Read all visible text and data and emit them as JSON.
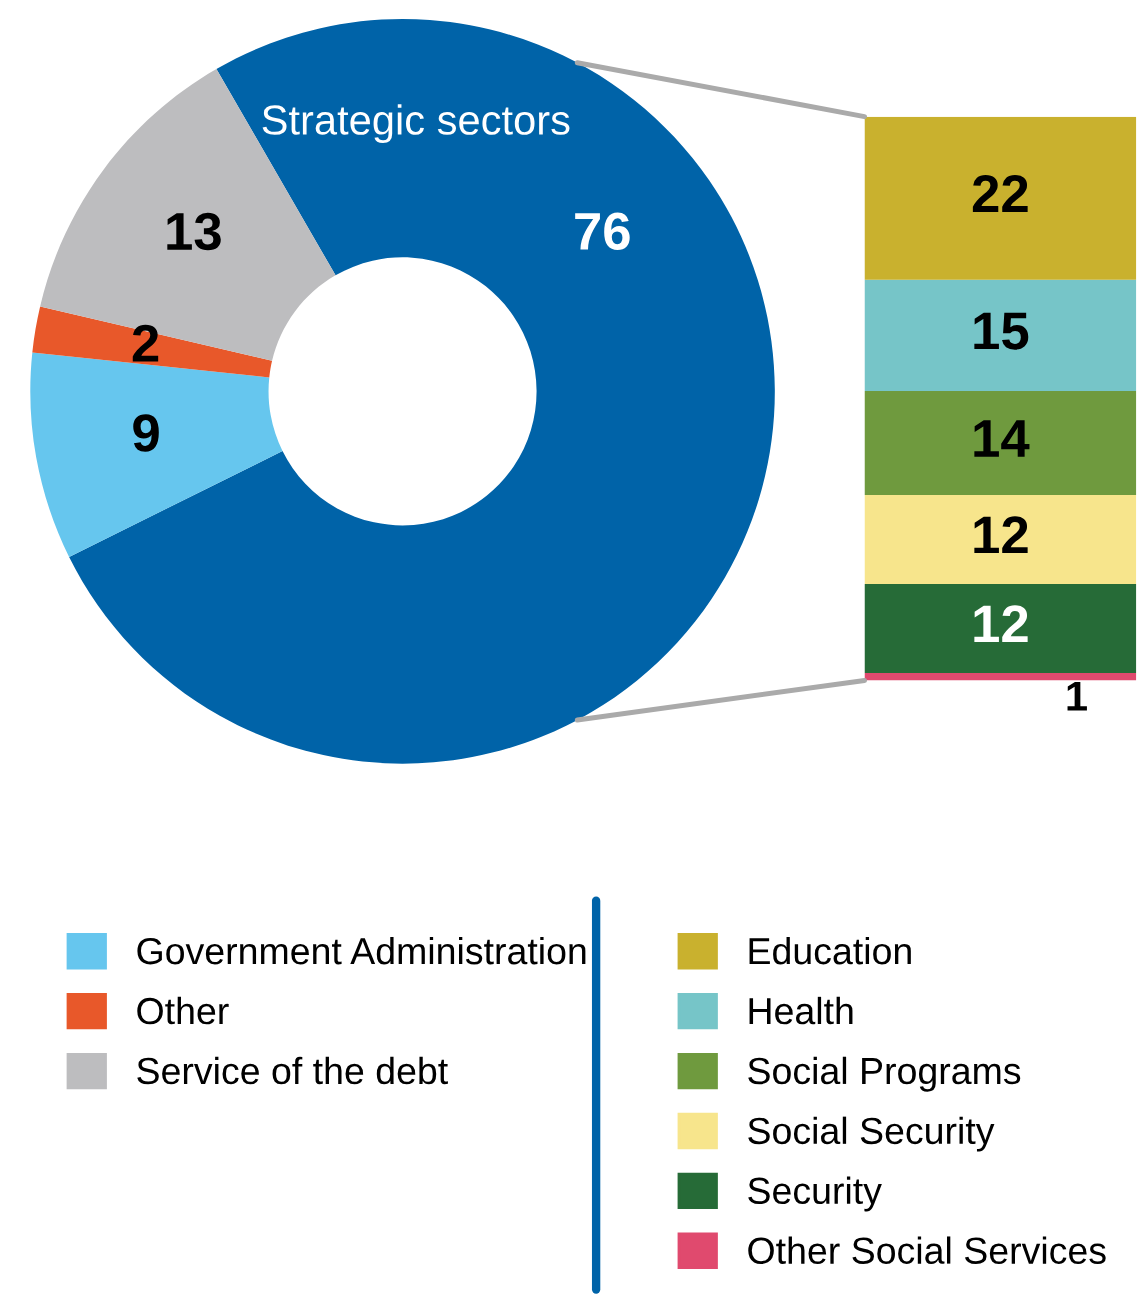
{
  "chart_data": [
    {
      "type": "donut",
      "categories": [
        "Strategic sectors",
        "Government Administration",
        "Other",
        "Service of the debt"
      ],
      "values": [
        76,
        9,
        2,
        13
      ],
      "colors": [
        "#0063a8",
        "#66c6ee",
        "#e8582a",
        "#bdbdbf"
      ],
      "data_labels": true,
      "legend": "bottom"
    },
    {
      "type": "bar",
      "stacked": true,
      "categories": [
        null
      ],
      "data_labels": true,
      "legend": "bottom",
      "series": [
        {
          "name": "Other Social Services",
          "color": "#e04a6e",
          "values": [
            1
          ]
        },
        {
          "name": "Security",
          "color": "#266b37",
          "values": [
            12
          ]
        },
        {
          "name": "Social Security",
          "color": "#f7e58c",
          "values": [
            12
          ]
        },
        {
          "name": "Social Programs",
          "color": "#6f9a3e",
          "values": [
            14
          ]
        },
        {
          "name": "Health",
          "color": "#76c5c8",
          "values": [
            15
          ]
        },
        {
          "name": "Education",
          "color": "#c9b12e",
          "values": [
            22
          ]
        }
      ]
    }
  ]
}
